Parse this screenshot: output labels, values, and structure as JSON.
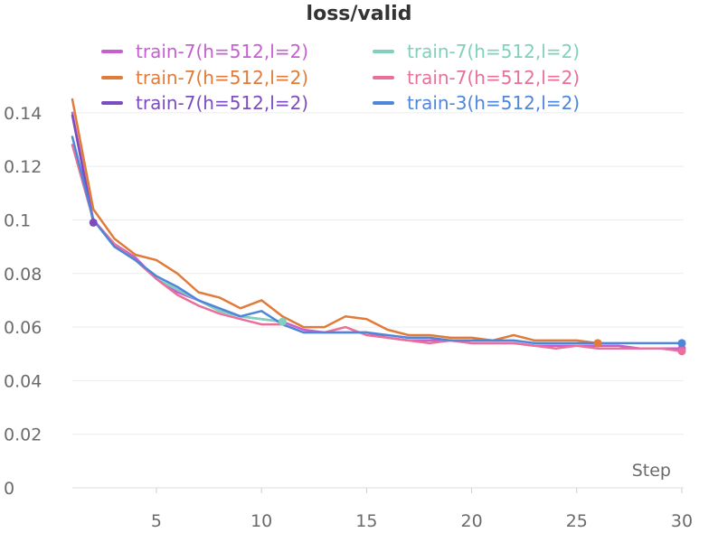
{
  "chart_data": {
    "type": "line",
    "title": "loss/valid",
    "xlabel": "Step",
    "ylabel": "",
    "xlim": [
      1,
      30
    ],
    "ylim": [
      0,
      0.145
    ],
    "xticks": [
      5,
      10,
      15,
      20,
      25,
      30
    ],
    "xtick_labels": [
      "5",
      "10",
      "15",
      "20",
      "25",
      "30"
    ],
    "yticks": [
      0,
      0.02,
      0.04,
      0.06,
      0.08,
      0.1,
      0.12,
      0.14
    ],
    "ytick_labels": [
      "0",
      "0.02",
      "0.04",
      "0.06",
      "0.08",
      "0.1",
      "0.12",
      "0.14"
    ],
    "grid": "horizontal",
    "legend_position": "top",
    "series": [
      {
        "name": "train-7(h=512,l=2)",
        "color": "#c65fd0",
        "x": [
          1,
          2,
          3,
          4,
          5,
          6,
          7,
          8,
          9,
          10,
          11,
          12,
          13,
          14,
          15,
          16,
          17,
          18,
          19,
          20,
          21,
          22,
          23,
          24,
          25,
          26,
          27,
          28,
          29,
          30
        ],
        "y": [
          0.14,
          0.1,
          0.091,
          0.086,
          0.078,
          0.073,
          0.07,
          0.066,
          0.064,
          0.063,
          0.062,
          0.059,
          0.058,
          0.058,
          0.058,
          0.056,
          0.055,
          0.055,
          0.055,
          0.054,
          0.054,
          0.054,
          0.053,
          0.053,
          0.053,
          0.053,
          0.053,
          0.052,
          0.052,
          0.052
        ]
      },
      {
        "name": "train-7(h=512,l=2)",
        "color": "#7fd1bb",
        "x": [
          1,
          2,
          3,
          4,
          5,
          6,
          7,
          8,
          9,
          10,
          11
        ],
        "y": [
          0.128,
          0.1,
          0.09,
          0.085,
          0.078,
          0.074,
          0.07,
          0.066,
          0.064,
          0.063,
          0.062
        ]
      },
      {
        "name": "train-7(h=512,l=2)",
        "color": "#e07b39",
        "x": [
          1,
          2,
          3,
          4,
          5,
          6,
          7,
          8,
          9,
          10,
          11,
          12,
          13,
          14,
          15,
          16,
          17,
          18,
          19,
          20,
          21,
          22,
          23,
          24,
          25,
          26
        ],
        "y": [
          0.145,
          0.104,
          0.093,
          0.087,
          0.085,
          0.08,
          0.073,
          0.071,
          0.067,
          0.07,
          0.064,
          0.06,
          0.06,
          0.064,
          0.063,
          0.059,
          0.057,
          0.057,
          0.056,
          0.056,
          0.055,
          0.057,
          0.055,
          0.055,
          0.055,
          0.054
        ]
      },
      {
        "name": "train-7(h=512,l=2)",
        "color": "#e8709a",
        "x": [
          1,
          2,
          3,
          4,
          5,
          6,
          7,
          8,
          9,
          10,
          11,
          12,
          13,
          14,
          15,
          16,
          17,
          18,
          19,
          20,
          21,
          22,
          23,
          24,
          25,
          26,
          27,
          28,
          29,
          30
        ],
        "y": [
          0.128,
          0.1,
          0.091,
          0.085,
          0.078,
          0.072,
          0.068,
          0.065,
          0.063,
          0.061,
          0.061,
          0.058,
          0.058,
          0.06,
          0.057,
          0.056,
          0.055,
          0.054,
          0.055,
          0.054,
          0.054,
          0.054,
          0.053,
          0.052,
          0.053,
          0.052,
          0.052,
          0.052,
          0.052,
          0.051
        ]
      },
      {
        "name": "train-7(h=512,l=2)",
        "color": "#7b4cbf",
        "x": [
          1,
          2
        ],
        "y": [
          0.139,
          0.099
        ]
      },
      {
        "name": "train-3(h=512,l=2)",
        "color": "#4e86d9",
        "x": [
          1,
          2,
          3,
          4,
          5,
          6,
          7,
          8,
          9,
          10,
          11,
          12,
          13,
          14,
          15,
          16,
          17,
          18,
          19,
          20,
          21,
          22,
          23,
          24,
          25,
          26,
          27,
          28,
          29,
          30
        ],
        "y": [
          0.131,
          0.1,
          0.09,
          0.085,
          0.079,
          0.075,
          0.07,
          0.067,
          0.064,
          0.066,
          0.061,
          0.058,
          0.058,
          0.058,
          0.058,
          0.057,
          0.056,
          0.056,
          0.055,
          0.055,
          0.055,
          0.055,
          0.054,
          0.054,
          0.054,
          0.054,
          0.054,
          0.054,
          0.054,
          0.054
        ]
      }
    ],
    "legend": [
      {
        "label": "train-7(h=512,l=2)",
        "color": "#c65fd0"
      },
      {
        "label": "train-7(h=512,l=2)",
        "color": "#7fd1bb"
      },
      {
        "label": "train-7(h=512,l=2)",
        "color": "#e07b39"
      },
      {
        "label": "train-7(h=512,l=2)",
        "color": "#e8709a"
      },
      {
        "label": "train-7(h=512,l=2)",
        "color": "#7b4cbf"
      },
      {
        "label": "train-3(h=512,l=2)",
        "color": "#4e86d9"
      }
    ]
  }
}
